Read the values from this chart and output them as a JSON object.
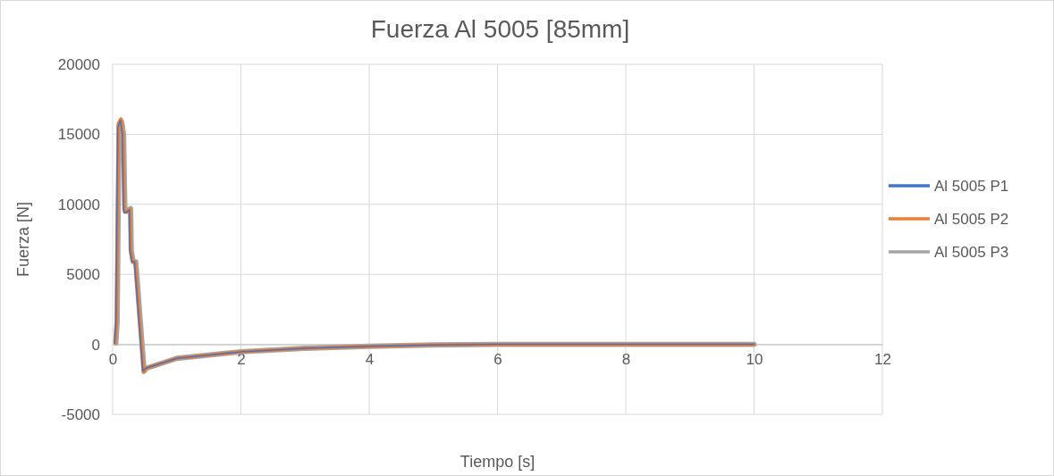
{
  "chart_data": {
    "type": "line",
    "title": "Fuerza Al 5005 [85mm]",
    "xlabel": "Tiempo [s]",
    "ylabel": "Fuerza [N]",
    "xlim": [
      0,
      12
    ],
    "xticks": [
      0,
      2,
      4,
      6,
      8,
      10,
      12
    ],
    "ylim": [
      -5000,
      20000
    ],
    "yticks": [
      -5000,
      0,
      5000,
      10000,
      15000,
      20000
    ],
    "grid": true,
    "legend": "right",
    "marker": "none",
    "line_style": "solid",
    "series": [
      {
        "name": "Al 5005 P1",
        "color": "#4472c4",
        "x": [
          0.03,
          0.05,
          0.08,
          0.12,
          0.15,
          0.17,
          0.18,
          0.2,
          0.26,
          0.27,
          0.3,
          0.34,
          0.47,
          0.52,
          1,
          2,
          3,
          4,
          5,
          6,
          10
        ],
        "values": [
          100,
          1500,
          15500,
          16000,
          15000,
          9600,
          9400,
          9400,
          9600,
          6700,
          5900,
          5900,
          -1900,
          -1700,
          -1000,
          -530,
          -280,
          -140,
          -40,
          0,
          0
        ]
      },
      {
        "name": "Al 5005 P2",
        "color": "#ed7d31",
        "x": [
          0.04,
          0.06,
          0.09,
          0.13,
          0.16,
          0.18,
          0.19,
          0.21,
          0.27,
          0.28,
          0.31,
          0.35,
          0.48,
          0.52,
          1,
          2,
          3,
          4,
          5,
          6,
          10
        ],
        "values": [
          100,
          1700,
          15800,
          16100,
          15000,
          9650,
          9450,
          9450,
          9650,
          6700,
          5900,
          5900,
          -2000,
          -1700,
          -1000,
          -530,
          -280,
          -140,
          -40,
          0,
          0
        ]
      },
      {
        "name": "Al 5005 P3",
        "color": "#a5a5a5",
        "x": [
          0.05,
          0.07,
          0.1,
          0.14,
          0.17,
          0.19,
          0.2,
          0.22,
          0.28,
          0.29,
          0.32,
          0.36,
          0.49,
          0.53,
          1,
          2,
          3,
          4,
          5,
          6,
          10
        ],
        "values": [
          100,
          1600,
          15600,
          15900,
          15000,
          9700,
          9500,
          9500,
          9700,
          6700,
          5900,
          5900,
          -1900,
          -1700,
          -1000,
          -530,
          -280,
          -140,
          -40,
          0,
          0
        ]
      }
    ]
  }
}
